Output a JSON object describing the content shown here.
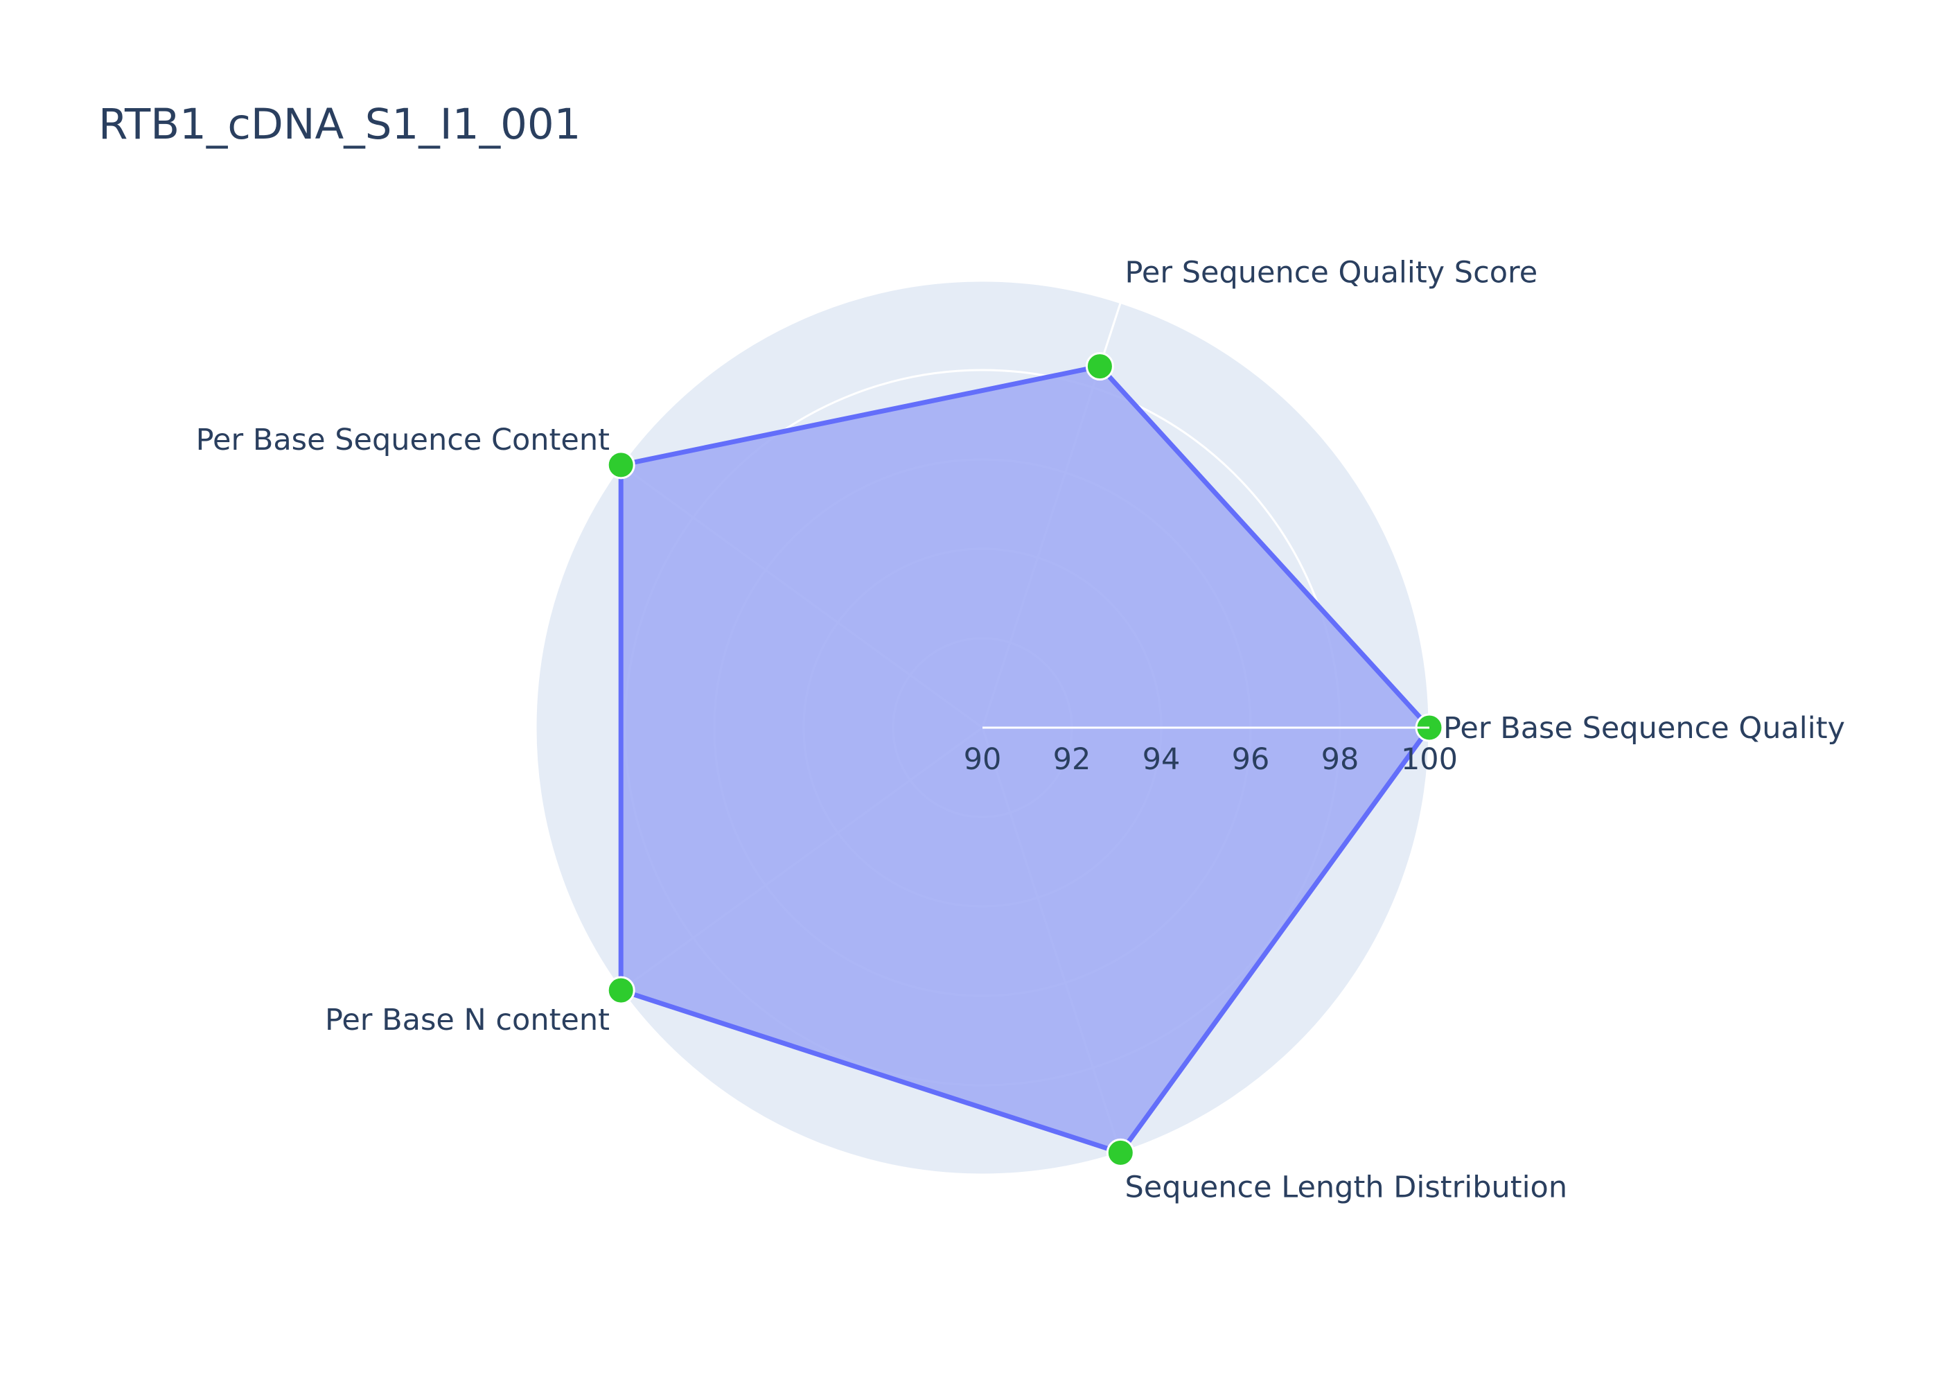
{
  "chart_data": {
    "type": "radar",
    "title": "RTB1_cDNA_S1_I1_001",
    "categories": [
      "Per Base Sequence Quality",
      "Per Sequence Quality Score",
      "Per Base Sequence Content",
      "Per Base N content",
      "Sequence Length Distribution"
    ],
    "series": [
      {
        "values": [
          100,
          98.5,
          100,
          100,
          100
        ]
      }
    ],
    "radial_range": [
      90,
      100
    ],
    "radial_ticks": [
      90,
      92,
      94,
      96,
      98,
      100
    ],
    "angular_direction": "counterclockwise",
    "start_angle_degrees": 0,
    "grid": true,
    "legend": "none",
    "colors": {
      "polar_background": "#e5ecf6",
      "grid": "#ffffff",
      "fill": "#a3aef5",
      "line": "#636efa",
      "marker": "#2ecc2e",
      "text": "#2a3f5f"
    }
  }
}
